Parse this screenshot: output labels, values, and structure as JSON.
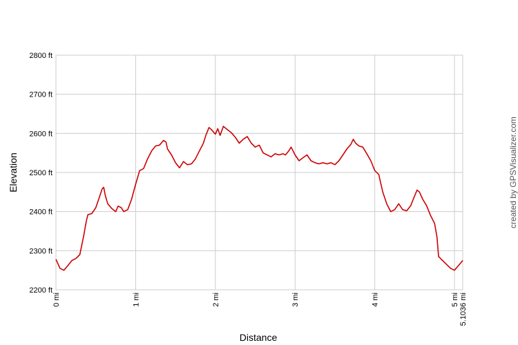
{
  "chart_data": {
    "type": "line",
    "xlabel": "Distance",
    "ylabel": "Elevation",
    "xlim": [
      0,
      5.1036
    ],
    "ylim": [
      2200,
      2800
    ],
    "x_ticks": [
      {
        "value": 0,
        "label": "0 mi"
      },
      {
        "value": 1,
        "label": "1 mi"
      },
      {
        "value": 2,
        "label": "2 mi"
      },
      {
        "value": 3,
        "label": "3 mi"
      },
      {
        "value": 4,
        "label": "4 mi"
      },
      {
        "value": 5,
        "label": "5 mi"
      },
      {
        "value": 5.1036,
        "label": "5.1036 mi"
      }
    ],
    "y_ticks": [
      {
        "value": 2200,
        "label": "2200 ft"
      },
      {
        "value": 2300,
        "label": "2300 ft"
      },
      {
        "value": 2400,
        "label": "2400 ft"
      },
      {
        "value": 2500,
        "label": "2500 ft"
      },
      {
        "value": 2600,
        "label": "2600 ft"
      },
      {
        "value": 2700,
        "label": "2700 ft"
      },
      {
        "value": 2800,
        "label": "2800 ft"
      }
    ],
    "grid": true,
    "series": [
      {
        "color": "#cc0000",
        "x": [
          0,
          0.05,
          0.1,
          0.15,
          0.2,
          0.25,
          0.3,
          0.32,
          0.35,
          0.38,
          0.4,
          0.45,
          0.5,
          0.55,
          0.58,
          0.6,
          0.62,
          0.65,
          0.7,
          0.75,
          0.78,
          0.82,
          0.85,
          0.9,
          0.95,
          1.0,
          1.05,
          1.1,
          1.15,
          1.2,
          1.25,
          1.3,
          1.35,
          1.38,
          1.4,
          1.45,
          1.5,
          1.55,
          1.6,
          1.65,
          1.7,
          1.75,
          1.8,
          1.85,
          1.88,
          1.92,
          1.95,
          2.0,
          2.03,
          2.06,
          2.1,
          2.15,
          2.2,
          2.25,
          2.3,
          2.35,
          2.4,
          2.45,
          2.5,
          2.55,
          2.6,
          2.65,
          2.7,
          2.75,
          2.8,
          2.85,
          2.88,
          2.92,
          2.95,
          3.0,
          3.05,
          3.1,
          3.15,
          3.2,
          3.25,
          3.3,
          3.35,
          3.4,
          3.45,
          3.5,
          3.55,
          3.6,
          3.65,
          3.7,
          3.73,
          3.76,
          3.8,
          3.85,
          3.9,
          3.95,
          4.0,
          4.05,
          4.1,
          4.15,
          4.2,
          4.25,
          4.3,
          4.35,
          4.4,
          4.45,
          4.5,
          4.53,
          4.56,
          4.6,
          4.65,
          4.7,
          4.75,
          4.78,
          4.8,
          4.85,
          4.9,
          4.95,
          5.0,
          5.05,
          5.1036
        ],
        "y": [
          2278,
          2255,
          2250,
          2262,
          2275,
          2280,
          2290,
          2310,
          2340,
          2375,
          2392,
          2395,
          2410,
          2440,
          2458,
          2462,
          2440,
          2420,
          2408,
          2400,
          2414,
          2410,
          2400,
          2405,
          2432,
          2470,
          2505,
          2510,
          2535,
          2555,
          2568,
          2570,
          2582,
          2578,
          2560,
          2545,
          2525,
          2512,
          2528,
          2520,
          2522,
          2535,
          2555,
          2575,
          2595,
          2615,
          2610,
          2598,
          2612,
          2595,
          2618,
          2610,
          2602,
          2590,
          2575,
          2585,
          2592,
          2575,
          2565,
          2570,
          2550,
          2545,
          2540,
          2548,
          2545,
          2548,
          2545,
          2555,
          2565,
          2545,
          2530,
          2538,
          2545,
          2530,
          2525,
          2522,
          2525,
          2522,
          2525,
          2520,
          2530,
          2545,
          2560,
          2572,
          2585,
          2575,
          2568,
          2565,
          2548,
          2530,
          2505,
          2495,
          2450,
          2420,
          2400,
          2405,
          2420,
          2405,
          2402,
          2415,
          2440,
          2455,
          2450,
          2432,
          2415,
          2390,
          2370,
          2335,
          2285,
          2275,
          2265,
          2255,
          2250,
          2262,
          2275
        ]
      }
    ]
  },
  "credit": "created by GPSVisualizer.com"
}
